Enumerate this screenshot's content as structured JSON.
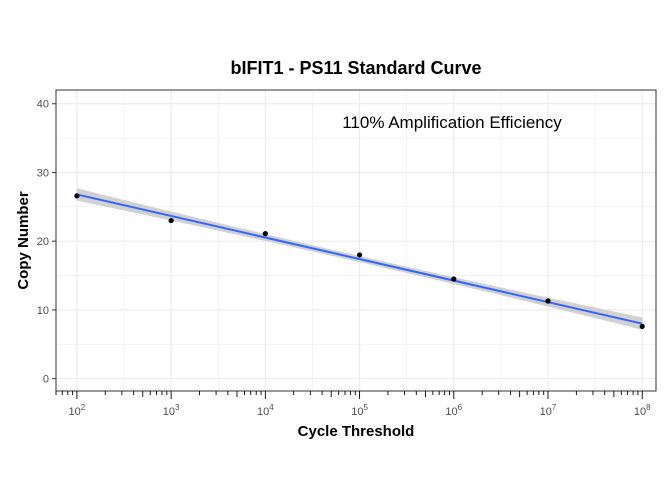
{
  "chart_data": {
    "type": "scatter",
    "title": "bIFIT1 - PS11 Standard Curve",
    "xlabel": "Cycle Threshold",
    "ylabel": "Copy Number",
    "annotation": "110% Amplification Efficiency",
    "x_scale": "log10",
    "xlim": [
      60,
      140000000
    ],
    "ylim": [
      -1.8,
      42
    ],
    "x_ticks": [
      100,
      1000,
      10000,
      100000,
      1000000,
      10000000,
      100000000
    ],
    "x_tick_labels": [
      {
        "base": "10",
        "exp": "2"
      },
      {
        "base": "10",
        "exp": "3"
      },
      {
        "base": "10",
        "exp": "4"
      },
      {
        "base": "10",
        "exp": "5"
      },
      {
        "base": "10",
        "exp": "6"
      },
      {
        "base": "10",
        "exp": "7"
      },
      {
        "base": "10",
        "exp": "8"
      }
    ],
    "y_ticks": [
      0,
      10,
      20,
      30,
      40
    ],
    "grid": true,
    "points": [
      {
        "x": 100,
        "y": 26.6
      },
      {
        "x": 1000,
        "y": 23.0
      },
      {
        "x": 10000,
        "y": 21.1
      },
      {
        "x": 100000,
        "y": 18.0
      },
      {
        "x": 1000000,
        "y": 14.5
      },
      {
        "x": 10000000,
        "y": 11.3
      },
      {
        "x": 100000000,
        "y": 7.6
      }
    ],
    "fit": {
      "type": "linear-log10x",
      "x_start": 100,
      "x_end": 100000000,
      "y_start": 26.8,
      "y_end": 8.0,
      "ci_halfwidth_ends": 0.9,
      "ci_halfwidth_mid": 0.45
    },
    "colors": {
      "points": "#000000",
      "fit_line": "#3366ff",
      "ci_band": "#cccccc",
      "grid": "#ebebeb",
      "panel_border": "#333333"
    }
  }
}
